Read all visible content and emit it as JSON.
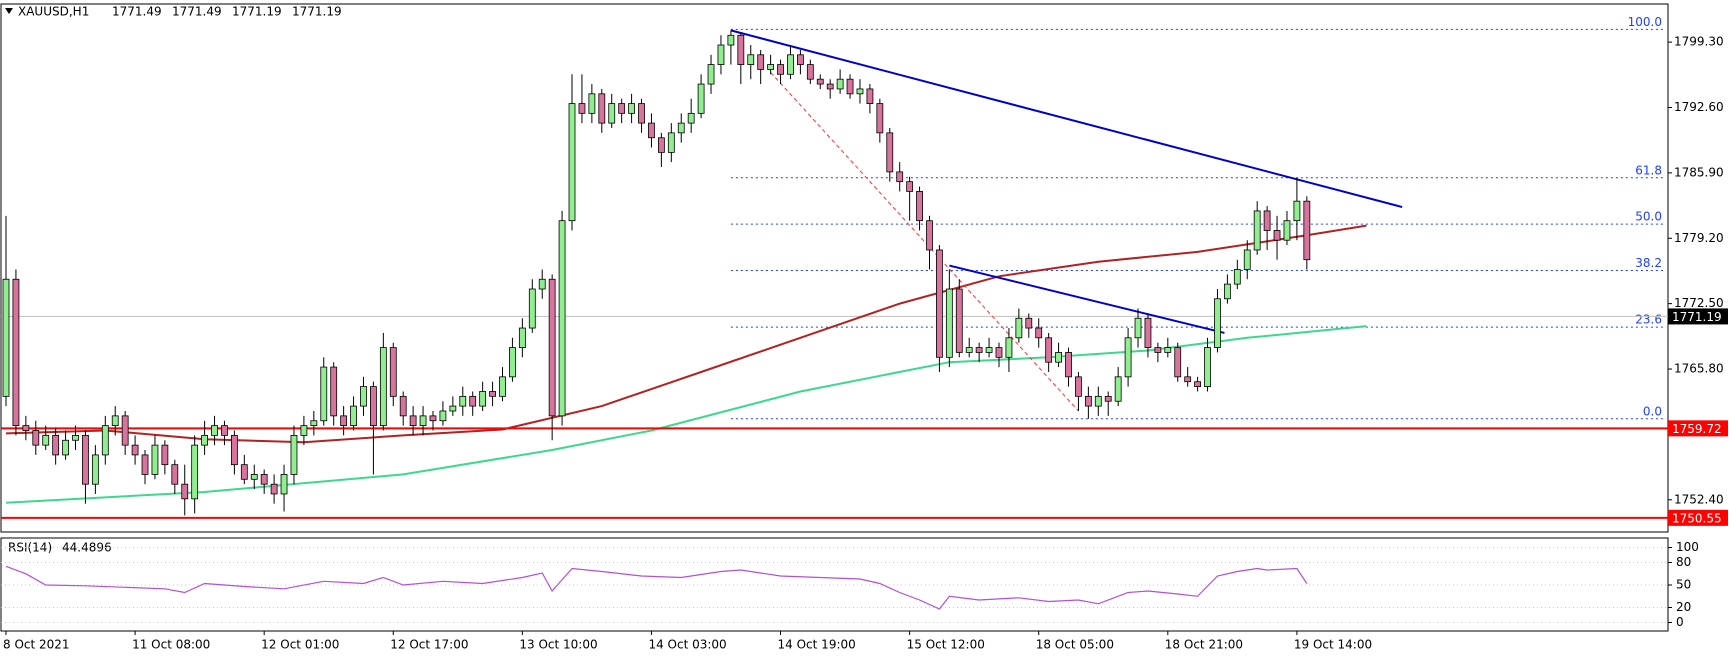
{
  "chart_data": {
    "type": "candlestick",
    "symbol": "XAUUSD,H1",
    "quote": [
      1771.49,
      1771.49,
      1771.19,
      1771.19
    ],
    "categories": [
      "8 Oct 2021",
      null,
      null,
      null,
      null,
      null,
      null,
      null,
      null,
      null,
      null,
      null,
      null,
      "11 Oct 08:00",
      null,
      null,
      null,
      null,
      null,
      null,
      null,
      null,
      null,
      null,
      null,
      null,
      "12 Oct 01:00",
      null,
      null,
      null,
      null,
      null,
      null,
      null,
      null,
      null,
      null,
      null,
      null,
      "12 Oct 17:00",
      null,
      null,
      null,
      null,
      null,
      null,
      null,
      null,
      null,
      null,
      null,
      null,
      "13 Oct 10:00",
      null,
      null,
      null,
      null,
      null,
      null,
      null,
      null,
      null,
      null,
      null,
      null,
      "14 Oct 03:00",
      null,
      null,
      null,
      null,
      null,
      null,
      null,
      null,
      null,
      null,
      null,
      null,
      "14 Oct 19:00",
      null,
      null,
      null,
      null,
      null,
      null,
      null,
      null,
      null,
      null,
      null,
      null,
      "15 Oct 12:00",
      null,
      null,
      null,
      null,
      null,
      null,
      null,
      null,
      null,
      null,
      null,
      null,
      "18 Oct 05:00",
      null,
      null,
      null,
      null,
      null,
      null,
      null,
      null,
      null,
      null,
      null,
      null,
      "18 Oct 21:00",
      null,
      null,
      null,
      null,
      null,
      null,
      null,
      null,
      null,
      null,
      null,
      null,
      "19 Oct 14:00",
      null
    ],
    "open": [
      1763,
      1775,
      1760,
      1759.5,
      1758,
      1759,
      1757,
      1758.5,
      1759,
      1754,
      1757,
      1760,
      1761,
      1758,
      1757,
      1755,
      1758,
      1756,
      1754,
      1752.5,
      1758,
      1759,
      1760,
      1759,
      1756,
      1754.5,
      1755,
      1754,
      1753,
      1755,
      1759,
      1760,
      1760.5,
      1766,
      1761,
      1760,
      1762,
      1764,
      1760,
      1768,
      1763,
      1761,
      1760,
      1761,
      1760.5,
      1761.5,
      1762,
      1763,
      1762,
      1763.5,
      1763,
      1765,
      1768,
      1770,
      1774,
      1775,
      1761,
      1781,
      1793,
      1792,
      1794,
      1791,
      1793,
      1792,
      1793,
      1791,
      1789.5,
      1788,
      1790,
      1791,
      1792,
      1795,
      1797,
      1799,
      1800,
      1797,
      1798,
      1796.5,
      1797,
      1796,
      1798,
      1797,
      1795.5,
      1795,
      1794.5,
      1795.5,
      1794,
      1794.5,
      1793,
      1790,
      1786,
      1785,
      1784,
      1781,
      1778,
      1767,
      1774,
      1767.5,
      1768,
      1767.5,
      1768,
      1767,
      1769,
      1771,
      1770,
      1769,
      1766.5,
      1767.5,
      1765,
      1763,
      1762,
      1763,
      1762.5,
      1765,
      1769,
      1771,
      1768,
      1767.5,
      1768,
      1765,
      1764.5,
      1764,
      1768,
      1773,
      1774.5,
      1776,
      1778,
      1782,
      1780,
      1779,
      1781,
      1783
    ],
    "high": [
      1781.5,
      1776,
      1761,
      1760.5,
      1760,
      1759.8,
      1759.5,
      1760,
      1759.5,
      1758,
      1761,
      1762,
      1761.5,
      1759,
      1757.5,
      1759,
      1758.5,
      1756.5,
      1756,
      1759,
      1760.5,
      1761,
      1760.5,
      1759.5,
      1757,
      1756,
      1755.5,
      1755,
      1756,
      1760,
      1761,
      1761.5,
      1767,
      1766.5,
      1762,
      1763,
      1765,
      1764.5,
      1769.5,
      1768.5,
      1763.5,
      1762,
      1762,
      1761.5,
      1762.5,
      1763,
      1764,
      1763.5,
      1764.5,
      1764.5,
      1766,
      1769,
      1771,
      1775,
      1776,
      1775.5,
      1782,
      1796,
      1796,
      1795,
      1794.5,
      1794,
      1793.5,
      1794,
      1793.5,
      1792,
      1790,
      1791,
      1792,
      1793.5,
      1796,
      1798,
      1800,
      1800.5,
      1800.3,
      1799,
      1798.5,
      1798,
      1797.5,
      1799,
      1798.5,
      1797.5,
      1796,
      1795.5,
      1796.5,
      1796,
      1795.5,
      1795,
      1793.5,
      1790.5,
      1787,
      1785.5,
      1784.5,
      1781.5,
      1778.5,
      1776,
      1775,
      1769,
      1768.5,
      1769,
      1768.5,
      1770,
      1772,
      1771.5,
      1771,
      1769.5,
      1768.5,
      1768,
      1765.5,
      1764,
      1764,
      1763.5,
      1766,
      1770,
      1772,
      1771.5,
      1768.5,
      1769,
      1768.5,
      1766,
      1765,
      1769,
      1774,
      1775.5,
      1777,
      1779,
      1783,
      1782.5,
      1781.5,
      1782,
      1785.4,
      1783.5
    ],
    "low": [
      1762,
      1759,
      1758.5,
      1757,
      1757.5,
      1756,
      1756.5,
      1757.5,
      1752,
      1753,
      1756,
      1759,
      1757,
      1756,
      1754,
      1754.5,
      1755,
      1753,
      1750.8,
      1751,
      1757,
      1758,
      1758,
      1755,
      1754,
      1753.5,
      1753,
      1752,
      1751.2,
      1754,
      1758,
      1759,
      1760,
      1760,
      1759,
      1759.5,
      1761,
      1755,
      1759.5,
      1762,
      1760,
      1759,
      1759,
      1759.5,
      1760,
      1761,
      1761,
      1761,
      1761.5,
      1762,
      1762.5,
      1764.5,
      1767,
      1769.5,
      1773,
      1758.5,
      1760,
      1780,
      1791,
      1791,
      1790,
      1790.5,
      1791,
      1791,
      1790,
      1788.5,
      1786.5,
      1787,
      1789,
      1790,
      1791.5,
      1794,
      1796,
      1797,
      1795,
      1795.5,
      1795,
      1796,
      1795,
      1795.5,
      1796,
      1795,
      1794.5,
      1793.5,
      1794,
      1793.5,
      1793,
      1792,
      1789,
      1785,
      1784,
      1781,
      1780,
      1776,
      1765.5,
      1766,
      1767,
      1767,
      1766.5,
      1767,
      1766,
      1765.5,
      1768.5,
      1769,
      1768,
      1765.5,
      1766,
      1764,
      1761.5,
      1760.7,
      1761,
      1761,
      1762,
      1764,
      1768,
      1767,
      1766.5,
      1767,
      1764.5,
      1764,
      1763.5,
      1763.5,
      1767.5,
      1772.5,
      1774,
      1775,
      1777.5,
      1778,
      1777,
      1778.5,
      1779,
      1776
    ],
    "close": [
      1775,
      1760,
      1759.5,
      1758,
      1759,
      1757,
      1758.5,
      1759,
      1754,
      1757,
      1760,
      1761,
      1758,
      1757,
      1755,
      1758,
      1756,
      1754,
      1752.5,
      1758,
      1759,
      1760,
      1759,
      1756,
      1754.5,
      1755,
      1754,
      1753,
      1755,
      1759,
      1760,
      1760.5,
      1766,
      1761,
      1760,
      1762,
      1764,
      1760,
      1768,
      1763,
      1761,
      1760,
      1761,
      1760.5,
      1761.5,
      1762,
      1763,
      1762,
      1763.5,
      1763,
      1765,
      1768,
      1770,
      1774,
      1775,
      1761,
      1781,
      1793,
      1792,
      1794,
      1791,
      1793,
      1792,
      1793,
      1791,
      1789.5,
      1788,
      1790,
      1791,
      1792,
      1795,
      1797,
      1799,
      1800,
      1797,
      1798,
      1796.5,
      1797,
      1796,
      1798,
      1797,
      1795.5,
      1795,
      1794.5,
      1795.5,
      1794,
      1794.5,
      1793,
      1790,
      1786,
      1785,
      1784,
      1781,
      1778,
      1767,
      1774,
      1767.5,
      1768,
      1767.5,
      1768,
      1767,
      1769,
      1771,
      1770,
      1769,
      1766.5,
      1767.5,
      1765,
      1763,
      1762,
      1763,
      1762.5,
      1765,
      1769,
      1771,
      1768,
      1767.5,
      1768,
      1765,
      1764.5,
      1764,
      1768,
      1773,
      1774.5,
      1776,
      1778,
      1782,
      1780,
      1779,
      1781,
      1783,
      1777
    ],
    "up_color": "#90ee90",
    "down_color": "#d8739b",
    "ylim": [
      1749.1,
      1803.0
    ],
    "yticks": [
      {
        "value": 1799.3,
        "label": "1799.30"
      },
      {
        "value": 1792.6,
        "label": "1792.60"
      },
      {
        "value": 1785.9,
        "label": "1785.90"
      },
      {
        "value": 1779.2,
        "label": "1779.20"
      },
      {
        "value": 1772.5,
        "label": "1772.50"
      },
      {
        "value": 1765.8,
        "label": "1765.80"
      },
      {
        "value": 1752.4,
        "label": "1752.40"
      }
    ],
    "moving_averages": [
      {
        "color": "#b22222",
        "x": [
          0,
          10,
          20,
          30,
          40,
          50,
          60,
          70,
          80,
          90,
          100,
          110,
          120,
          131,
          137
        ],
        "values": [
          1759.2,
          1759.5,
          1758.6,
          1758.3,
          1759.0,
          1759.6,
          1762,
          1765.5,
          1769,
          1772.5,
          1775.3,
          1776.8,
          1777.8,
          1779.5,
          1780.5
        ]
      },
      {
        "color": "#3cd88c",
        "x": [
          0,
          20,
          40,
          55,
          65,
          80,
          95,
          105,
          115,
          125,
          137
        ],
        "values": [
          1752.1,
          1753.2,
          1755,
          1757.5,
          1759.5,
          1763.5,
          1766.5,
          1767,
          1767.7,
          1769,
          1770.2
        ]
      }
    ],
    "levels": [
      {
        "value": 1759.72,
        "label": "1759.72",
        "color": "#ff0000"
      },
      {
        "value": 1750.55,
        "label": "1750.55",
        "color": "#ff0000"
      }
    ],
    "last_price": {
      "value": 1771.19,
      "label": "1771.19"
    },
    "fibonacci": {
      "color": "#1f3fff",
      "x": 73,
      "levels": [
        {
          "ratio": {
            "value": 100,
            "label": "100.0"
          },
          "price": 1800.6
        },
        {
          "ratio": 61.8,
          "price": 1785.4
        },
        {
          "ratio": {
            "value": 50,
            "label": "50.0"
          },
          "price": 1780.65
        },
        {
          "ratio": 38.2,
          "price": 1775.9
        },
        {
          "ratio": 23.6,
          "price": 1770.1
        },
        {
          "ratio": {
            "value": 0,
            "label": "0.0"
          },
          "price": 1760.7
        }
      ]
    },
    "trendlines": [
      {
        "color": "#0000cd",
        "dash": false,
        "x": [
          73,
          140.6
        ],
        "values": [
          1800.5,
          1782.4
        ]
      },
      {
        "color": "#0000cd",
        "dash": false,
        "x": [
          95,
          122.7
        ],
        "values": [
          1776.4,
          1769.5
        ]
      },
      {
        "color": "#ff3333",
        "dash": true,
        "x": [
          77,
          108
        ],
        "values": [
          1796.2,
          1761.5
        ]
      }
    ],
    "rsi": {
      "title": "RSI(14)",
      "current": 44.4896,
      "color": "#b44fd8",
      "x": [
        0,
        2,
        4,
        8,
        12,
        16,
        18,
        20,
        24,
        28,
        32,
        36,
        38,
        40,
        44,
        48,
        52,
        54,
        55,
        57,
        60,
        64,
        68,
        72,
        74,
        78,
        82,
        86,
        88,
        90,
        92,
        94,
        95,
        98,
        102,
        105,
        108,
        110,
        113,
        115,
        118,
        120,
        122,
        124,
        126,
        127,
        130,
        131
      ],
      "values": [
        75,
        65,
        50,
        49,
        47,
        45,
        40,
        52,
        48,
        45,
        55,
        52,
        60,
        50,
        55,
        52,
        60,
        66,
        42,
        72,
        68,
        62,
        60,
        68,
        70,
        62,
        60,
        58,
        52,
        40,
        30,
        18,
        35,
        30,
        33,
        28,
        30,
        25,
        40,
        42,
        38,
        35,
        62,
        68,
        72,
        70,
        72,
        52
      ],
      "ylim": [
        -10,
        110
      ],
      "yticks": [
        100,
        80,
        50,
        20,
        0
      ]
    }
  }
}
